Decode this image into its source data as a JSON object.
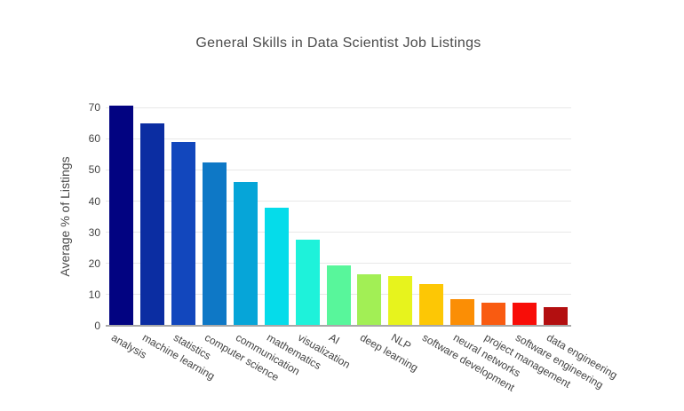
{
  "figure": {
    "title": "General Skills in Data Scientist Job Listings"
  },
  "chart_data": {
    "type": "bar",
    "title": "General Skills in Data Scientist Job Listings",
    "xlabel": "",
    "ylabel": "Average % of Listings",
    "ylim": [
      0,
      74.6
    ],
    "yticks": [
      0,
      10,
      20,
      30,
      40,
      50,
      60,
      70
    ],
    "grid": true,
    "legend": false,
    "x_tick_angle_deg": 30,
    "categories": [
      "analysis",
      "machine learning",
      "statistics",
      "computer science",
      "communication",
      "mathematics",
      "visualization",
      "AI",
      "deep learning",
      "NLP",
      "software development",
      "neural networks",
      "project management",
      "software engineering",
      "data engineering"
    ],
    "values": [
      70.5,
      65,
      59,
      52.5,
      46,
      38,
      27.5,
      19.5,
      16.5,
      16,
      13.5,
      8.5,
      7.5,
      7.5,
      6
    ],
    "bar_colors": [
      "#020381",
      "#0b2da2",
      "#1247bd",
      "#0e78c6",
      "#06a5d8",
      "#05dcea",
      "#1ef2da",
      "#58f69b",
      "#a2ef55",
      "#e7f31d",
      "#fdc705",
      "#fb8e05",
      "#f95b11",
      "#f80d08",
      "#b30f10"
    ]
  },
  "colors": {
    "background": "#ffffff",
    "grid_line": "#e8e8e8",
    "axis_line": "#a8a8a8",
    "title_text": "#4a4a4a",
    "tick_text": "#444444"
  }
}
